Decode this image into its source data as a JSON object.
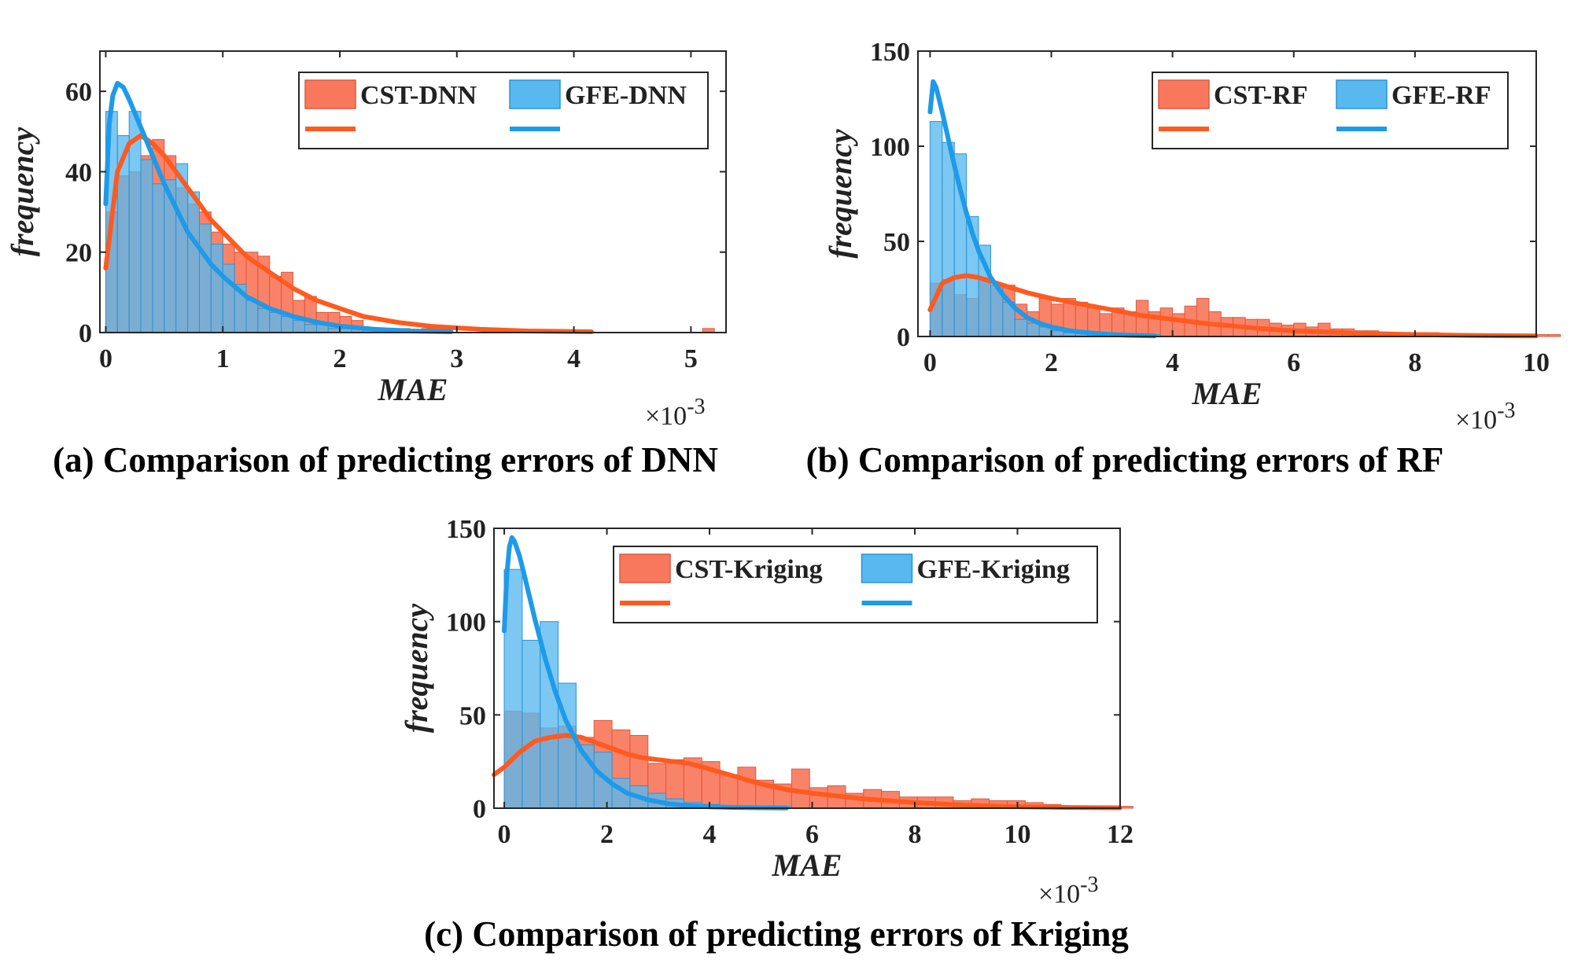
{
  "chart_data": [
    {
      "type": "histogram",
      "caption": "(a) Comparison of predicting errors of DNN",
      "xlabel": "MAE",
      "ylabel": "frequency",
      "x_exponent": "×10",
      "x_exponent_power": "-3",
      "xlim": [
        -0.05,
        5.3
      ],
      "ylim": [
        0,
        70
      ],
      "xticks": [
        0,
        1,
        2,
        3,
        4,
        5
      ],
      "yticks": [
        0,
        20,
        40,
        60
      ],
      "bin_start": 0.0,
      "bin_width": 0.1,
      "series": [
        {
          "name": "CST-DNN",
          "color": "#f7785c",
          "edge": "#e0583c",
          "values": [
            30,
            39,
            40,
            44,
            48,
            44,
            36,
            32,
            30,
            25,
            22,
            20,
            20,
            19,
            14,
            15,
            8,
            9,
            5,
            5,
            4,
            3,
            1,
            1,
            1,
            1,
            0,
            1,
            1,
            0,
            0,
            0,
            0,
            0,
            0,
            0,
            0,
            0,
            0,
            0,
            0,
            0,
            0,
            0,
            0,
            0,
            0,
            0,
            0,
            0,
            0,
            1
          ]
        },
        {
          "name": "GFE-DNN",
          "color": "#57b9ef",
          "edge": "#2a94d6",
          "values": [
            55,
            49,
            55,
            43,
            37,
            38,
            42,
            35,
            27,
            22,
            17,
            12,
            8,
            6,
            5,
            4,
            3,
            2,
            2,
            1,
            1,
            1,
            0,
            1,
            0,
            0,
            0,
            0,
            0
          ]
        }
      ],
      "fits": [
        {
          "name": "CST-DNN fit",
          "color": "#ff5a1f",
          "x": [
            0,
            0.1,
            0.2,
            0.3,
            0.4,
            0.5,
            0.6,
            0.7,
            0.8,
            0.9,
            1.0,
            1.2,
            1.4,
            1.6,
            1.8,
            2.0,
            2.2,
            2.5,
            2.8,
            3.2,
            3.6,
            4.15
          ],
          "y": [
            16,
            40,
            47,
            49,
            47,
            44,
            40,
            36,
            32,
            28,
            25,
            19,
            15,
            11,
            8,
            6,
            4,
            2.5,
            1.5,
            0.8,
            0.4,
            0.2
          ]
        },
        {
          "name": "GFE-DNN fit",
          "color": "#1e9ae8",
          "x": [
            0,
            0.03,
            0.06,
            0.1,
            0.15,
            0.2,
            0.3,
            0.4,
            0.5,
            0.6,
            0.7,
            0.8,
            0.9,
            1.0,
            1.2,
            1.4,
            1.6,
            1.8,
            2.0,
            2.3,
            2.6,
            2.95
          ],
          "y": [
            32,
            52,
            59,
            62,
            61,
            58,
            51,
            44,
            37,
            31,
            25,
            21,
            17,
            14,
            9,
            6,
            4,
            2.6,
            1.6,
            0.8,
            0.4,
            0.2
          ]
        }
      ]
    },
    {
      "type": "histogram",
      "caption": "(b) Comparison of predicting errors of RF",
      "xlabel": "MAE",
      "ylabel": "frequency",
      "x_exponent": "×10",
      "x_exponent_power": "-3",
      "xlim": [
        -0.2,
        10
      ],
      "ylim": [
        0,
        150
      ],
      "xticks": [
        0,
        2,
        4,
        6,
        8,
        10
      ],
      "yticks": [
        0,
        50,
        100,
        150
      ],
      "bin_start": 0.0,
      "bin_width": 0.2,
      "series": [
        {
          "name": "CST-RF",
          "color": "#f7785c",
          "edge": "#e0583c",
          "values": [
            28,
            30,
            22,
            20,
            31,
            27,
            27,
            17,
            13,
            20,
            17,
            20,
            18,
            15,
            12,
            15,
            13,
            19,
            13,
            15,
            12,
            16,
            20,
            13,
            10,
            10,
            9,
            9,
            7,
            6,
            7,
            5,
            7,
            4,
            4,
            3,
            3,
            2,
            2,
            2,
            2,
            2,
            1,
            1,
            1,
            1,
            1,
            1,
            1,
            1,
            1,
            1
          ]
        },
        {
          "name": "GFE-RF",
          "color": "#57b9ef",
          "edge": "#2a94d6",
          "values": [
            113,
            102,
            96,
            63,
            48,
            27,
            18,
            9,
            7,
            5,
            3,
            2,
            2,
            1,
            1,
            1,
            0,
            0,
            1
          ]
        }
      ],
      "fits": [
        {
          "name": "CST-RF fit",
          "color": "#ff5a1f",
          "x": [
            0,
            0.2,
            0.4,
            0.6,
            0.8,
            1.0,
            1.3,
            1.6,
            2.0,
            2.5,
            3.0,
            3.5,
            4.0,
            4.5,
            5.0,
            5.5,
            6.0,
            7.0,
            8.0,
            9.0,
            10.0
          ],
          "y": [
            14,
            28,
            31,
            32,
            31,
            29,
            26,
            23,
            20,
            17,
            14,
            11,
            9,
            7,
            5.5,
            4,
            3,
            1.8,
            1,
            0.5,
            0.3
          ]
        },
        {
          "name": "GFE-RF fit",
          "color": "#1e9ae8",
          "x": [
            0,
            0.05,
            0.1,
            0.2,
            0.3,
            0.4,
            0.5,
            0.6,
            0.7,
            0.8,
            1.0,
            1.2,
            1.4,
            1.6,
            1.8,
            2.0,
            2.3,
            2.6,
            3.0,
            3.3,
            3.7
          ],
          "y": [
            118,
            134,
            131,
            118,
            104,
            90,
            77,
            65,
            54,
            45,
            31,
            22,
            15,
            10,
            7,
            5,
            3,
            2,
            1,
            0.6,
            0.3
          ]
        }
      ]
    },
    {
      "type": "histogram",
      "caption": "(c) Comparison of predicting errors of Kriging",
      "xlabel": "MAE",
      "ylabel": "frequency",
      "x_exponent": "×10",
      "x_exponent_power": "-3",
      "xlim": [
        -0.2,
        12
      ],
      "ylim": [
        0,
        150
      ],
      "xticks": [
        0,
        2,
        4,
        6,
        8,
        10,
        12
      ],
      "yticks": [
        0,
        50,
        100,
        150
      ],
      "bin_start": 0.0,
      "bin_width": 0.35,
      "series": [
        {
          "name": "CST-Kriging",
          "color": "#f7785c",
          "edge": "#e0583c",
          "values": [
            52,
            51,
            43,
            44,
            38,
            47,
            42,
            39,
            24,
            26,
            27,
            25,
            18,
            22,
            15,
            13,
            21,
            11,
            12,
            8,
            10,
            9,
            6,
            6,
            6,
            4,
            5,
            4,
            4,
            3,
            2,
            1,
            1,
            1,
            1,
            0,
            0,
            0,
            0,
            0,
            0,
            0,
            0
          ]
        },
        {
          "name": "GFE-Kriging",
          "color": "#57b9ef",
          "edge": "#2a94d6",
          "values": [
            128,
            90,
            100,
            67,
            34,
            30,
            16,
            12,
            8,
            5,
            3,
            2,
            1,
            1,
            0,
            1
          ]
        }
      ],
      "fits": [
        {
          "name": "CST-Kriging fit",
          "color": "#ff5a1f",
          "x": [
            -0.2,
            0,
            0.3,
            0.6,
            0.9,
            1.2,
            1.5,
            1.8,
            2.1,
            2.4,
            2.7,
            3.0,
            3.3,
            3.6,
            4.0,
            4.5,
            5.0,
            5.5,
            6.0,
            7.0,
            8.0,
            9.0,
            10.0,
            11.0,
            12.0
          ],
          "y": [
            18,
            22,
            30,
            36,
            38,
            39,
            38,
            35,
            32,
            29,
            27,
            26,
            25,
            24,
            21,
            17,
            13,
            10,
            8,
            5,
            3,
            1.6,
            0.8,
            0.4,
            0.2
          ]
        },
        {
          "name": "GFE-Kriging fit",
          "color": "#1e9ae8",
          "x": [
            0,
            0.05,
            0.1,
            0.15,
            0.2,
            0.3,
            0.4,
            0.6,
            0.8,
            1.0,
            1.2,
            1.5,
            1.8,
            2.1,
            2.4,
            2.8,
            3.2,
            3.6,
            4.0,
            4.5,
            5.0,
            5.5
          ],
          "y": [
            95,
            125,
            140,
            145,
            143,
            135,
            124,
            101,
            80,
            62,
            47,
            31,
            20,
            13,
            8,
            4.5,
            2.4,
            1.3,
            0.7,
            0.4,
            0.2,
            0.1
          ]
        }
      ]
    }
  ]
}
